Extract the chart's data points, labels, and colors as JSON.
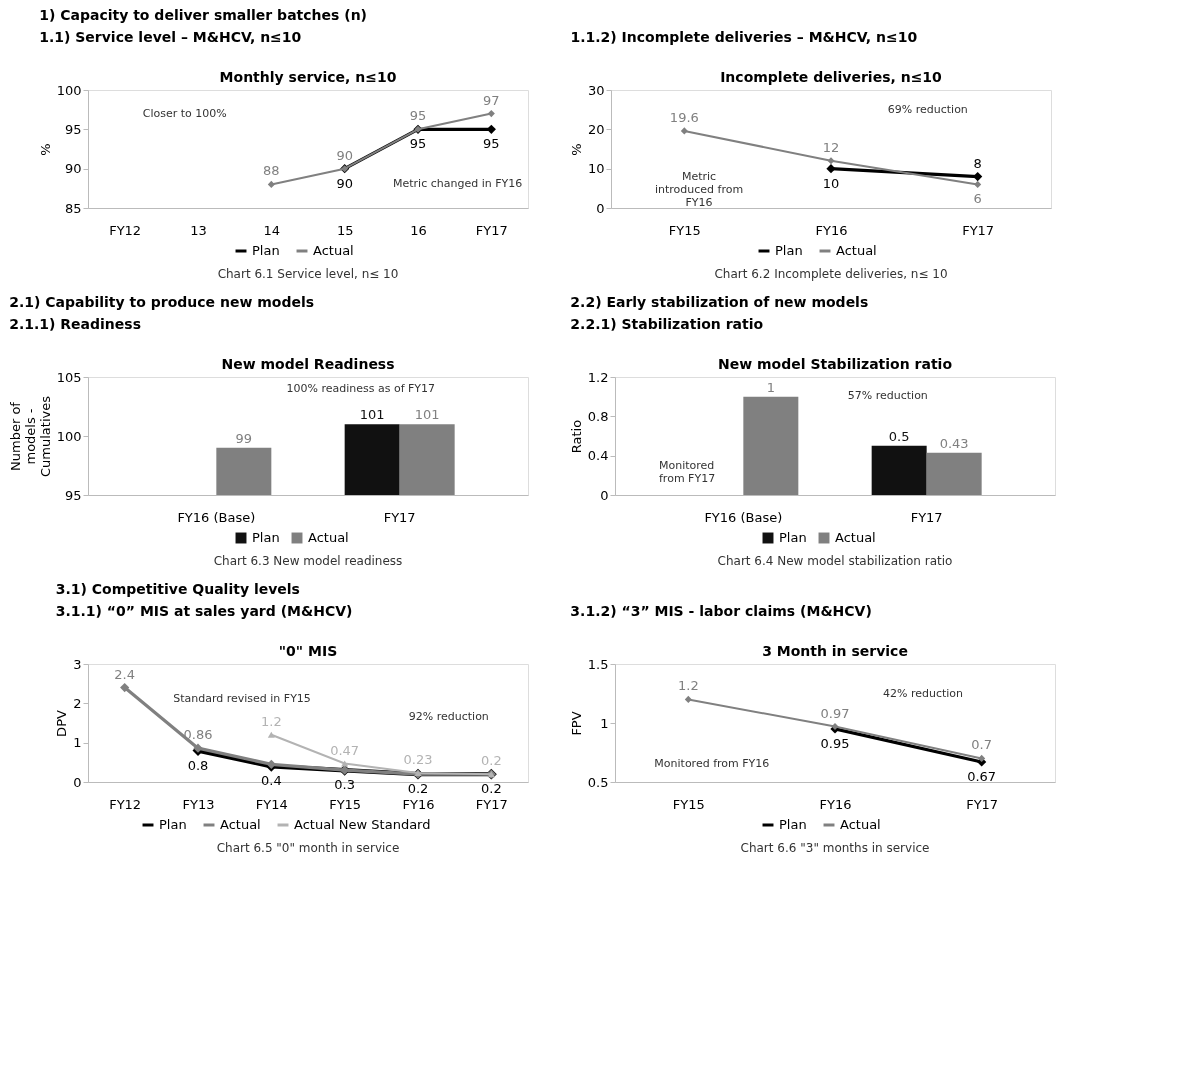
{
  "chart_data": [
    {
      "type": "line",
      "title": "Monthly service, n≤10",
      "subtitle": "1.1)     Service level – M&HCV,  n≤10",
      "ylabel": "%",
      "categories": [
        "FY12",
        "13",
        "14",
        "15",
        "16",
        "FY17"
      ],
      "ylim": [
        85,
        100
      ],
      "yticks": [
        85,
        90,
        95,
        100
      ],
      "legend": "bottom",
      "marker": "diamond",
      "line_style": "solid",
      "series": [
        {
          "name": "Plan",
          "color": "#000000",
          "values": [
            null,
            null,
            null,
            90,
            95,
            95
          ],
          "value_labels": [
            null,
            null,
            null,
            "90",
            "95",
            "95"
          ]
        },
        {
          "name": "Actual",
          "color": "#808080",
          "values": [
            null,
            null,
            88,
            90,
            95,
            97
          ],
          "value_labels": [
            null,
            null,
            "88",
            "90",
            "95",
            "97"
          ]
        }
      ],
      "annotations": [
        "1) Capacity to deliver smaller batches (n)",
        "Closer to 100%",
        "Metric changed in FY16",
        "Chart 6.1 Service level, n≤ 10"
      ]
    },
    {
      "type": "line",
      "title": "Incomplete deliveries, n≤10",
      "subtitle": "1.1.2) Incomplete deliveries – M&HCV,  n≤10",
      "ylabel": "%",
      "categories": [
        "FY15",
        "FY16",
        "FY17"
      ],
      "ylim": [
        0,
        30
      ],
      "yticks": [
        0,
        10,
        20,
        30
      ],
      "legend": "bottom",
      "marker": "diamond",
      "line_style": "solid",
      "series": [
        {
          "name": "Plan",
          "color": "#000000",
          "values": [
            null,
            10,
            8
          ],
          "value_labels": [
            null,
            "10",
            "8"
          ]
        },
        {
          "name": "Actual",
          "color": "#808080",
          "values": [
            19.6,
            12,
            6
          ],
          "value_labels": [
            "19.6",
            "12",
            "6"
          ]
        }
      ],
      "annotations": [
        "69% reduction",
        "Metric introduced from FY16",
        "Chart 6.2 Incomplete deliveries, n≤ 10"
      ]
    },
    {
      "type": "bar",
      "title": "New model Readiness",
      "subtitle": "2.1.1) Readiness",
      "ylabel": "Number of models - Cumulatives",
      "categories": [
        "FY16 (Base)",
        "FY17"
      ],
      "ylim": [
        95,
        105
      ],
      "yticks": [
        95,
        100,
        105
      ],
      "legend": "bottom",
      "series": [
        {
          "name": "Plan",
          "color": "#111111",
          "values": [
            null,
            101
          ],
          "value_labels": [
            null,
            "101"
          ]
        },
        {
          "name": "Actual",
          "color": "#808080",
          "values": [
            99,
            101
          ],
          "value_labels": [
            "99",
            "101"
          ]
        }
      ],
      "annotations": [
        "2.1) Capability to produce new models",
        "100% readiness as of FY17",
        "Chart 6.3 New model readiness"
      ]
    },
    {
      "type": "bar",
      "title": "New model Stabilization ratio",
      "subtitle": "2.2.1) Stabilization ratio",
      "ylabel": "Ratio",
      "categories": [
        "FY16 (Base)",
        "FY17"
      ],
      "ylim": [
        0,
        1.2
      ],
      "yticks": [
        0,
        0.4,
        0.8,
        1.2
      ],
      "legend": "bottom",
      "series": [
        {
          "name": "Plan",
          "color": "#111111",
          "values": [
            null,
            0.5
          ],
          "value_labels": [
            null,
            "0.5"
          ]
        },
        {
          "name": "Actual",
          "color": "#808080",
          "values": [
            1,
            0.43
          ],
          "value_labels": [
            "1",
            "0.43"
          ]
        }
      ],
      "annotations": [
        "2.2) Early stabilization of new models",
        "57% reduction",
        "Monitored from FY17",
        "Chart 6.4 New model stabilization ratio"
      ]
    },
    {
      "type": "line",
      "title": "\"0\" MIS",
      "subtitle": "3.1.1) “0” MIS at sales yard (M&HCV)",
      "ylabel": "DPV",
      "categories": [
        "FY12",
        "FY13",
        "FY14",
        "FY15",
        "FY16",
        "FY17"
      ],
      "ylim": [
        0,
        3
      ],
      "yticks": [
        0,
        1,
        2,
        3
      ],
      "legend": "bottom",
      "marker": "diamond",
      "line_style": "solid",
      "series": [
        {
          "name": "Plan",
          "color": "#000000",
          "values": [
            null,
            0.8,
            0.4,
            0.3,
            0.2,
            0.2
          ],
          "value_labels": [
            null,
            "0.8",
            "0.4",
            "0.3",
            "0.2",
            "0.2"
          ]
        },
        {
          "name": "Actual",
          "color": "#808080",
          "values": [
            2.4,
            0.86,
            0.45,
            0.3,
            0.2,
            0.2
          ],
          "value_labels": [
            "2.4",
            "0.86",
            null,
            null,
            null,
            null
          ]
        },
        {
          "name": "Actual New Standard",
          "color": "#b3b3b3",
          "marker": "triangle",
          "values": [
            null,
            null,
            1.2,
            0.47,
            0.23,
            0.2
          ],
          "value_labels": [
            null,
            null,
            "1.2",
            "0.47",
            "0.23",
            "0.2"
          ]
        }
      ],
      "annotations": [
        "3.1) Competitive Quality levels",
        "Standard revised in FY15",
        "92% reduction",
        "Chart 6.5 \"0\" month in service"
      ]
    },
    {
      "type": "line",
      "title": "3 Month in service",
      "subtitle": "3.1.2) “3” MIS - labor claims (M&HCV)",
      "ylabel": "FPV",
      "categories": [
        "FY15",
        "FY16",
        "FY17"
      ],
      "ylim": [
        0.5,
        1.5
      ],
      "yticks": [
        0.5,
        1,
        1.5
      ],
      "legend": "bottom",
      "marker": "diamond",
      "line_style": "solid",
      "series": [
        {
          "name": "Plan",
          "color": "#000000",
          "values": [
            null,
            0.95,
            0.67
          ],
          "value_labels": [
            null,
            "0.95",
            "0.67"
          ]
        },
        {
          "name": "Actual",
          "color": "#808080",
          "values": [
            1.2,
            0.97,
            0.7
          ],
          "value_labels": [
            "1.2",
            "0.97",
            "0.7"
          ]
        }
      ],
      "annotations": [
        "42% reduction",
        "Monitored from FY16",
        "Chart 6.6 \"3\" months in service"
      ]
    }
  ]
}
